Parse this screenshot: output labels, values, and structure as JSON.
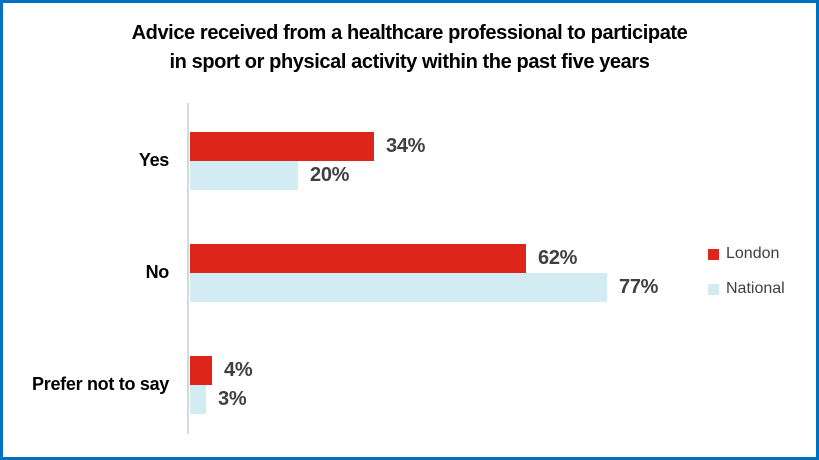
{
  "title": {
    "line1": "Advice received from a healthcare professional to participate",
    "line2": "in sport or physical activity within the past five years"
  },
  "chart_data": {
    "type": "bar",
    "orientation": "horizontal",
    "title": "Advice received from a healthcare professional to participate in sport or physical activity within the past five years",
    "categories": [
      "Yes",
      "No",
      "Prefer not to say"
    ],
    "series": [
      {
        "name": "London",
        "color": "#DE251C",
        "values": [
          34,
          62,
          4
        ]
      },
      {
        "name": "National",
        "color": "#D3EBF2",
        "values": [
          20,
          77,
          3
        ]
      }
    ],
    "value_suffix": "%",
    "data_labels": {
      "London": [
        "34%",
        "62%",
        "4%"
      ],
      "National": [
        "20%",
        "77%",
        "3%"
      ]
    },
    "xlim": [
      0,
      100
    ],
    "grid": false,
    "legend_position": "right"
  },
  "colors": {
    "frame_border": "#0070C0",
    "axis_line": "#D9D9D9",
    "data_label": "#404040",
    "category_label": "#000000",
    "legend_text": "#404040",
    "background": "#FFFFFF"
  }
}
